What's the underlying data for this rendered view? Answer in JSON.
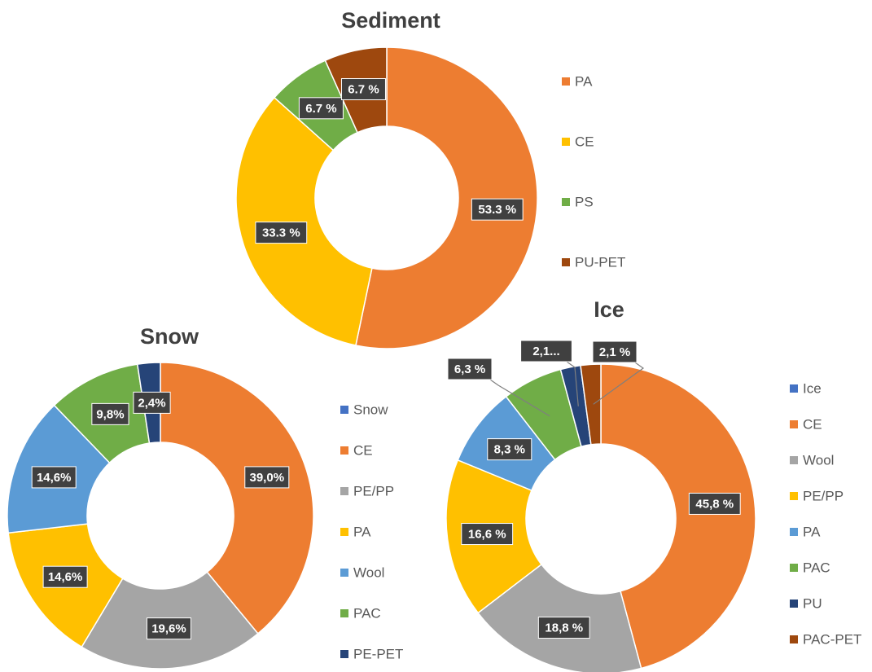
{
  "chart_data": [
    {
      "type": "donut",
      "title": "Sediment",
      "categories": [
        "PA",
        "CE",
        "PS",
        "PU-PET"
      ],
      "values": [
        53.3,
        33.3,
        6.7,
        6.7
      ],
      "value_labels": [
        "53.3 %",
        "33.3 %",
        "6.7 %",
        "6.7 %"
      ],
      "colors": [
        "#ed7d31",
        "#ffc000",
        "#70ad47",
        "#9e480e"
      ]
    },
    {
      "type": "donut",
      "title": "Snow",
      "categories": [
        "Snow",
        "CE",
        "PE/PP",
        "PA",
        "Wool",
        "PAC",
        "PE-PET"
      ],
      "values": [
        0,
        39.0,
        19.6,
        14.6,
        14.6,
        9.8,
        2.4
      ],
      "value_labels": [
        null,
        "39,0%",
        "19,6%",
        "14,6%",
        "14,6%",
        "9,8%",
        "2,4%"
      ],
      "colors": [
        "#4472c4",
        "#ed7d31",
        "#a5a5a5",
        "#ffc000",
        "#5b9bd5",
        "#70ad47",
        "#264478"
      ]
    },
    {
      "type": "donut",
      "title": "Ice",
      "categories": [
        "Ice",
        "CE",
        "Wool",
        "PE/PP",
        "PA",
        "PAC",
        "PU",
        "PAC-PET"
      ],
      "values": [
        0,
        45.8,
        18.8,
        16.6,
        8.3,
        6.3,
        2.1,
        2.1
      ],
      "value_labels": [
        null,
        "45,8 %",
        "18,8 %",
        "16,6 %",
        "8,3 %",
        "6,3 %",
        "2,1...",
        "2,1 %"
      ],
      "colors": [
        "#4472c4",
        "#ed7d31",
        "#a5a5a5",
        "#ffc000",
        "#5b9bd5",
        "#70ad47",
        "#264478",
        "#9e480e"
      ]
    }
  ]
}
